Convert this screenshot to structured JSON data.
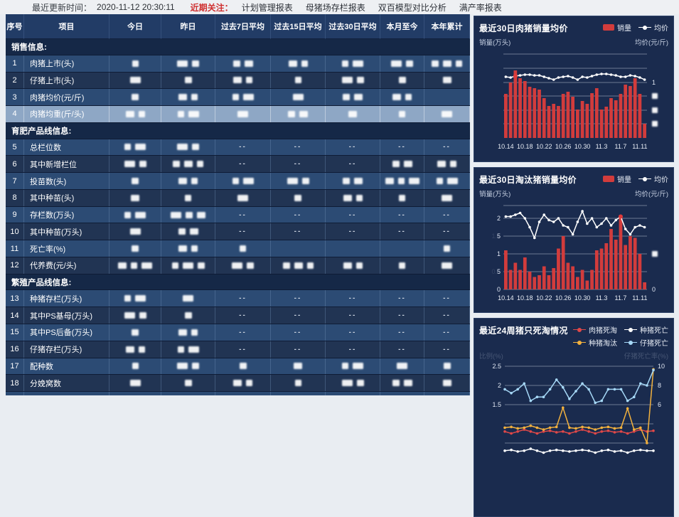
{
  "topbar": {
    "update_label": "最近更新时间：",
    "update_time": "2020-11-12 20:30:11",
    "focus_label": "近期关注：",
    "links": [
      "计划管理报表",
      "母猪场存栏报表",
      "双百模型对比分析",
      "满产率报表"
    ]
  },
  "table": {
    "columns": [
      "序号",
      "项目",
      "今日",
      "昨日",
      "过去7日平均",
      "过去15日平均",
      "过去30日平均",
      "本月至今",
      "本年累计"
    ],
    "selected_row": "4",
    "redaction_note": "blurred values shown as white blocks",
    "sections": [
      {
        "title": "销售信息:",
        "rows": [
          {
            "no": "1",
            "name": "肉猪上市(头)",
            "cells": [
              "b",
              "bb",
              "bb",
              "bb",
              "bb",
              "bb",
              "bbb"
            ]
          },
          {
            "no": "2",
            "name": "仔猪上市(头)",
            "cells": [
              "b",
              "b",
              "bb",
              "b",
              "bb",
              "b",
              "b"
            ]
          },
          {
            "no": "3",
            "name": "肉猪均价(元/斤)",
            "cells": [
              "b",
              "bb",
              "bb",
              "b",
              "bb",
              "bb",
              ""
            ]
          },
          {
            "no": "4",
            "name": "肉猪均重(斤/头)",
            "cells": [
              "bb",
              "bb",
              "b",
              "bb",
              "b",
              "b",
              "b"
            ]
          }
        ]
      },
      {
        "title": "育肥产品线信息:",
        "rows": [
          {
            "no": "5",
            "name": "总栏位数",
            "cells": [
              "bb",
              "bb",
              "--",
              "--",
              "--",
              "--",
              "--"
            ]
          },
          {
            "no": "6",
            "name": "其中新增栏位",
            "cells": [
              "bb",
              "bbb",
              "--",
              "--",
              "--",
              "bb",
              "bb"
            ]
          },
          {
            "no": "7",
            "name": "投苗数(头)",
            "cells": [
              "b",
              "bb",
              "bb",
              "bb",
              "bb",
              "bbb",
              "bb"
            ]
          },
          {
            "no": "8",
            "name": "其中种苗(头)",
            "cells": [
              "b",
              "b",
              "b",
              "b",
              "bb",
              "b",
              "b"
            ]
          },
          {
            "no": "9",
            "name": "存栏数(万头)",
            "cells": [
              "bb",
              "bbb",
              "--",
              "--",
              "--",
              "--",
              "--"
            ]
          },
          {
            "no": "10",
            "name": "其中种苗(万头)",
            "cells": [
              "b",
              "bb",
              "--",
              "--",
              "--",
              "--",
              "--"
            ]
          },
          {
            "no": "11",
            "name": "死亡率(%)",
            "cells": [
              "b",
              "bb",
              "b",
              "",
              "",
              "",
              "b"
            ]
          },
          {
            "no": "12",
            "name": "代养费(元/头)",
            "cells": [
              "bbb",
              "bbb",
              "bb",
              "bbb",
              "bb",
              "b",
              "b"
            ]
          }
        ]
      },
      {
        "title": "繁殖产品线信息:",
        "rows": [
          {
            "no": "13",
            "name": "种猪存栏(万头)",
            "cells": [
              "bb",
              "b",
              "--",
              "--",
              "--",
              "--",
              "--"
            ]
          },
          {
            "no": "14",
            "name": "其中PS基母(万头)",
            "cells": [
              "bb",
              "b",
              "--",
              "--",
              "--",
              "--",
              "--"
            ]
          },
          {
            "no": "15",
            "name": "其中PS后备(万头)",
            "cells": [
              "b",
              "bb",
              "--",
              "--",
              "--",
              "--",
              "--"
            ]
          },
          {
            "no": "16",
            "name": "仔猪存栏(万头)",
            "cells": [
              "bb",
              "bb",
              "--",
              "--",
              "--",
              "--",
              "--"
            ]
          },
          {
            "no": "17",
            "name": "配种数",
            "cells": [
              "b",
              "bb",
              "b",
              "b",
              "bb",
              "b",
              "b"
            ]
          },
          {
            "no": "18",
            "name": "分娩窝数",
            "cells": [
              "b",
              "b",
              "bb",
              "b",
              "bb",
              "bb",
              "b"
            ]
          },
          {
            "no": "19",
            "name": "窝均活仔(头/窝)",
            "cells": [
              "bb",
              "bb",
              "",
              "b",
              "bb",
              "",
              "b"
            ]
          }
        ]
      }
    ]
  },
  "chart_data": [
    {
      "type": "bar+line",
      "title": "最近30日肉猪销量均价",
      "legend": [
        {
          "label": "销量",
          "kind": "bar",
          "color": "#d23c3c"
        },
        {
          "label": "均价",
          "kind": "line",
          "color": "#ffffff"
        }
      ],
      "left_axis_label": "销量(万头)",
      "right_axis_label": "均价(元/斤)",
      "x_labels": [
        "10.14",
        "10.18",
        "10.22",
        "10.26",
        "10.30",
        "11.3",
        "11.7",
        "11.11"
      ],
      "x_label_indices": [
        0,
        4,
        8,
        12,
        16,
        20,
        24,
        28
      ],
      "scale_max": 1.18,
      "grid_values": [
        1.18,
        0.98,
        0.78,
        0.59,
        0.39,
        0.2
      ],
      "left_ticks": [],
      "right_ticks": [
        {
          "v": 0.78,
          "text": "1"
        },
        {
          "v": 0.59,
          "redacted": true
        },
        {
          "v": 0.39,
          "redacted": true
        },
        {
          "v": 0.2,
          "redacted": true
        }
      ],
      "bars": {
        "name": "销量",
        "color": "#d23c3c",
        "values": [
          0.62,
          0.78,
          0.95,
          0.84,
          0.8,
          0.72,
          0.7,
          0.68,
          0.56,
          0.45,
          0.48,
          0.45,
          0.62,
          0.65,
          0.58,
          0.4,
          0.52,
          0.48,
          0.63,
          0.7,
          0.4,
          0.44,
          0.56,
          0.53,
          0.62,
          0.75,
          0.73,
          0.84,
          0.62,
          0.2
        ]
      },
      "line": {
        "name": "均价",
        "color": "#ffffff",
        "marker_index": 2,
        "marker_color": "#e03b3b",
        "values": [
          0.86,
          0.85,
          0.87,
          0.88,
          0.89,
          0.89,
          0.88,
          0.88,
          0.86,
          0.84,
          0.82,
          0.85,
          0.86,
          0.87,
          0.85,
          0.82,
          0.86,
          0.85,
          0.87,
          0.89,
          0.9,
          0.9,
          0.89,
          0.88,
          0.86,
          0.86,
          0.88,
          0.87,
          0.85,
          0.82
        ]
      }
    },
    {
      "type": "bar+line",
      "title": "最近30日淘汰猪销量均价",
      "legend": [
        {
          "label": "销量",
          "kind": "bar",
          "color": "#d23c3c"
        },
        {
          "label": "均价",
          "kind": "line",
          "color": "#ffffff"
        }
      ],
      "left_axis_label": "销量(万头)",
      "right_axis_label": "均价(元/斤)",
      "x_labels": [
        "10.14",
        "10.18",
        "10.22",
        "10.26",
        "10.30",
        "11.3",
        "11.7",
        "11.11"
      ],
      "x_label_indices": [
        0,
        4,
        8,
        12,
        16,
        20,
        24,
        28
      ],
      "scale_max": 2.36,
      "grid_values": [
        2.36,
        2.0,
        1.5,
        1.0,
        0.5,
        0
      ],
      "left_ticks": [
        {
          "v": 2.0,
          "text": "2"
        },
        {
          "v": 1.5,
          "text": "1.5",
          "dim": 2
        },
        {
          "v": 1.0,
          "text": "1"
        },
        {
          "v": 0.5,
          "text": "0.5",
          "dim": 2
        },
        {
          "v": 0,
          "text": "0"
        }
      ],
      "right_ticks": [
        {
          "v": 1.0,
          "redacted": true
        },
        {
          "v": 0,
          "text": "0"
        }
      ],
      "bars": {
        "name": "销量",
        "color": "#d23c3c",
        "values": [
          1.1,
          0.55,
          0.75,
          0.55,
          0.9,
          0.5,
          0.35,
          0.4,
          0.65,
          0.4,
          0.6,
          1.15,
          1.5,
          0.75,
          0.65,
          0.35,
          0.55,
          0.25,
          0.55,
          1.1,
          1.15,
          1.3,
          1.7,
          1.4,
          2.05,
          1.25,
          1.5,
          1.45,
          1.0,
          0.2
        ]
      },
      "line": {
        "name": "均价",
        "color": "#ffffff",
        "marker_index": 24,
        "marker_color": "#e03b3b",
        "values": [
          2.05,
          2.05,
          2.1,
          2.15,
          2.0,
          1.75,
          1.45,
          1.9,
          2.1,
          1.95,
          1.9,
          2.0,
          1.8,
          1.75,
          1.55,
          1.9,
          2.2,
          1.85,
          2.0,
          1.75,
          1.85,
          2.0,
          1.8,
          1.95,
          2.05,
          1.7,
          1.55,
          1.75,
          1.8,
          1.75
        ]
      }
    },
    {
      "type": "line",
      "title": "最近24周猪只死淘情况",
      "legend": [
        {
          "label": "肉猪死淘",
          "color": "#e04848"
        },
        {
          "label": "种猪死亡",
          "color": "#ffffff"
        },
        {
          "label": "种猪淘汰",
          "color": "#f2b13e"
        },
        {
          "label": "仔猪死亡",
          "color": "#a6d8f7"
        }
      ],
      "left_axis_label": "比例(%)",
      "right_axis_label": "仔猪死亡率(%)",
      "left_ticks": [
        "2.5",
        "2",
        "1.5"
      ],
      "right_ticks": [
        "10",
        "8",
        "6"
      ],
      "left_axis": {
        "top": 2.5,
        "step": 0.5
      },
      "right_axis": {
        "top": 10,
        "step": 2
      },
      "series": [
        {
          "name": "肉猪死淘",
          "color": "#e04848",
          "axis": "left",
          "values": [
            0.8,
            0.75,
            0.8,
            0.85,
            0.8,
            0.75,
            0.8,
            0.82,
            0.78,
            0.8,
            0.75,
            0.8,
            0.85,
            0.8,
            0.75,
            0.8,
            0.82,
            0.78,
            0.8,
            0.75,
            0.8,
            0.85,
            0.8,
            0.82
          ]
        },
        {
          "name": "种猪死亡",
          "color": "#ffffff",
          "axis": "left",
          "values": [
            0.3,
            0.32,
            0.28,
            0.3,
            0.35,
            0.3,
            0.25,
            0.3,
            0.32,
            0.3,
            0.28,
            0.3,
            0.32,
            0.3,
            0.25,
            0.3,
            0.32,
            0.28,
            0.3,
            0.25,
            0.3,
            0.32,
            0.3,
            0.3
          ]
        },
        {
          "name": "种猪淘汰",
          "color": "#f2b13e",
          "axis": "left",
          "values": [
            0.9,
            0.92,
            0.88,
            0.9,
            0.95,
            0.9,
            0.85,
            0.9,
            0.92,
            1.42,
            0.9,
            0.88,
            0.92,
            0.9,
            0.85,
            0.9,
            0.92,
            0.88,
            0.9,
            1.4,
            0.85,
            0.9,
            0.5,
            2.42
          ]
        },
        {
          "name": "仔猪死亡",
          "color": "#a6d8f7",
          "axis": "right",
          "values": [
            7.6,
            7.2,
            7.6,
            8.2,
            6.4,
            6.8,
            6.8,
            7.6,
            8.6,
            7.8,
            6.6,
            7.4,
            8.2,
            7.6,
            6.2,
            6.4,
            7.6,
            7.6,
            7.6,
            6.4,
            6.8,
            8.2,
            8.0,
            9.6
          ]
        }
      ]
    }
  ]
}
